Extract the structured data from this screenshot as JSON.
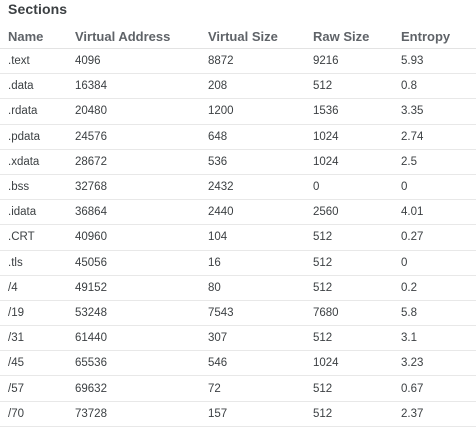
{
  "section_title": "Sections",
  "columns": [
    "Name",
    "Virtual Address",
    "Virtual Size",
    "Raw Size",
    "Entropy"
  ],
  "rows": [
    [
      ".text",
      "4096",
      "8872",
      "9216",
      "5.93"
    ],
    [
      ".data",
      "16384",
      "208",
      "512",
      "0.8"
    ],
    [
      ".rdata",
      "20480",
      "1200",
      "1536",
      "3.35"
    ],
    [
      ".pdata",
      "24576",
      "648",
      "1024",
      "2.74"
    ],
    [
      ".xdata",
      "28672",
      "536",
      "1024",
      "2.5"
    ],
    [
      ".bss",
      "32768",
      "2432",
      "0",
      "0"
    ],
    [
      ".idata",
      "36864",
      "2440",
      "2560",
      "4.01"
    ],
    [
      ".CRT",
      "40960",
      "104",
      "512",
      "0.27"
    ],
    [
      ".tls",
      "45056",
      "16",
      "512",
      "0"
    ],
    [
      "/4",
      "49152",
      "80",
      "512",
      "0.2"
    ],
    [
      "/19",
      "53248",
      "7543",
      "7680",
      "5.8"
    ],
    [
      "/31",
      "61440",
      "307",
      "512",
      "3.1"
    ],
    [
      "/45",
      "65536",
      "546",
      "1024",
      "3.23"
    ],
    [
      "/57",
      "69632",
      "72",
      "512",
      "0.67"
    ],
    [
      "/70",
      "73728",
      "157",
      "512",
      "2.37"
    ]
  ]
}
